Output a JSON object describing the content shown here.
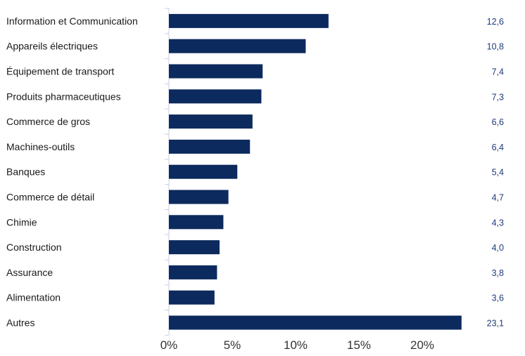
{
  "chart_data": {
    "type": "bar",
    "orientation": "horizontal",
    "categories": [
      "Information et Communication",
      "Appareils électriques",
      "Équipement de transport",
      "Produits pharmaceutiques",
      "Commerce de gros",
      "Machines-outils",
      "Banques",
      "Commerce de détail",
      "Chimie",
      "Construction",
      "Assurance",
      "Alimentation",
      "Autres"
    ],
    "values": [
      12.6,
      10.8,
      7.4,
      7.3,
      6.6,
      6.4,
      5.4,
      4.7,
      4.3,
      4.0,
      3.8,
      3.6,
      23.1
    ],
    "value_labels": [
      "12,6",
      "10,8",
      "7,4",
      "7,3",
      "6,6",
      "6,4",
      "5,4",
      "4,7",
      "4,3",
      "4,0",
      "3,8",
      "3,6",
      "23,1"
    ],
    "x_ticks": [
      0,
      5,
      10,
      15,
      20
    ],
    "x_tick_labels": [
      "0%",
      "5%",
      "10%",
      "15%",
      "20%"
    ],
    "xlim": [
      0,
      25
    ],
    "bar_color": "#0d2a5e",
    "value_label_color": "#1f3a7a",
    "axis_color": "#c9cfe0",
    "grid": false
  }
}
